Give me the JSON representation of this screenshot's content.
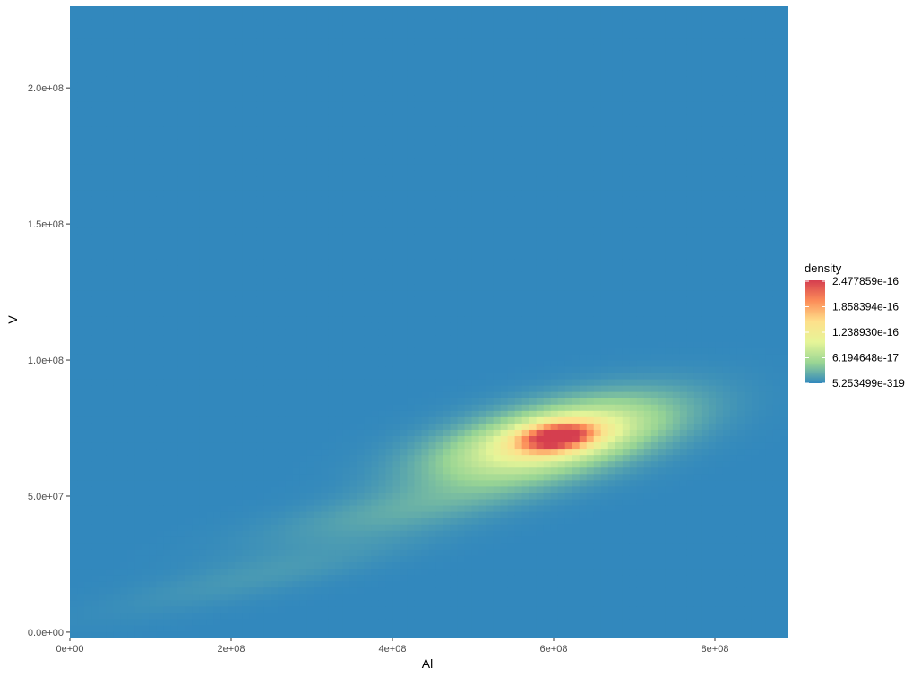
{
  "chart_data": {
    "type": "heatmap",
    "title": "",
    "xlabel": "Al",
    "ylabel": "V",
    "xlim": [
      0,
      890000000
    ],
    "ylim": [
      -2000000,
      230000000
    ],
    "x_ticks": [
      {
        "value": 0,
        "label": "0e+00"
      },
      {
        "value": 200000000,
        "label": "2e+08"
      },
      {
        "value": 400000000,
        "label": "4e+08"
      },
      {
        "value": 600000000,
        "label": "6e+08"
      },
      {
        "value": 800000000,
        "label": "8e+08"
      }
    ],
    "y_ticks": [
      {
        "value": 0,
        "label": "0.0e+00"
      },
      {
        "value": 50000000,
        "label": "5.0e+07"
      },
      {
        "value": 100000000,
        "label": "1.0e+08"
      },
      {
        "value": 150000000,
        "label": "1.5e+08"
      },
      {
        "value": 200000000,
        "label": "2.0e+08"
      }
    ],
    "grid": false,
    "legend": {
      "title": "density",
      "position": "right",
      "colors": [
        "#3288bd",
        "#99d594",
        "#e6f598",
        "#fee08b",
        "#fc8d59",
        "#d53e4f"
      ],
      "breaks": [
        {
          "value": 5.2535e-319,
          "label": "5.253499e-319"
        },
        {
          "value": 6.194648e-17,
          "label": "6.194648e-17"
        },
        {
          "value": 1.23893e-16,
          "label": "1.238930e-16"
        },
        {
          "value": 1.858394e-16,
          "label": "1.858394e-16"
        },
        {
          "value": 2.477859e-16,
          "label": "2.477859e-16"
        }
      ],
      "min": 5.2535e-319,
      "max": 2.5e-16
    },
    "density_components": [
      {
        "x": 605000000,
        "y": 72000000,
        "sx": 33000000,
        "sy": 3800000,
        "rho": 0.3,
        "peak": 1.75e-16
      },
      {
        "x": 600000000,
        "y": 71000000,
        "sx": 95000000,
        "sy": 10000000,
        "rho": 0.55,
        "peak": 1.3e-16
      },
      {
        "x": 430000000,
        "y": 46000000,
        "sx": 120000000,
        "sy": 9000000,
        "rho": 0.75,
        "peak": 2.2e-17
      },
      {
        "x": 250000000,
        "y": 22000000,
        "sx": 130000000,
        "sy": 10000000,
        "rho": 0.85,
        "peak": 1.1e-17
      }
    ]
  }
}
